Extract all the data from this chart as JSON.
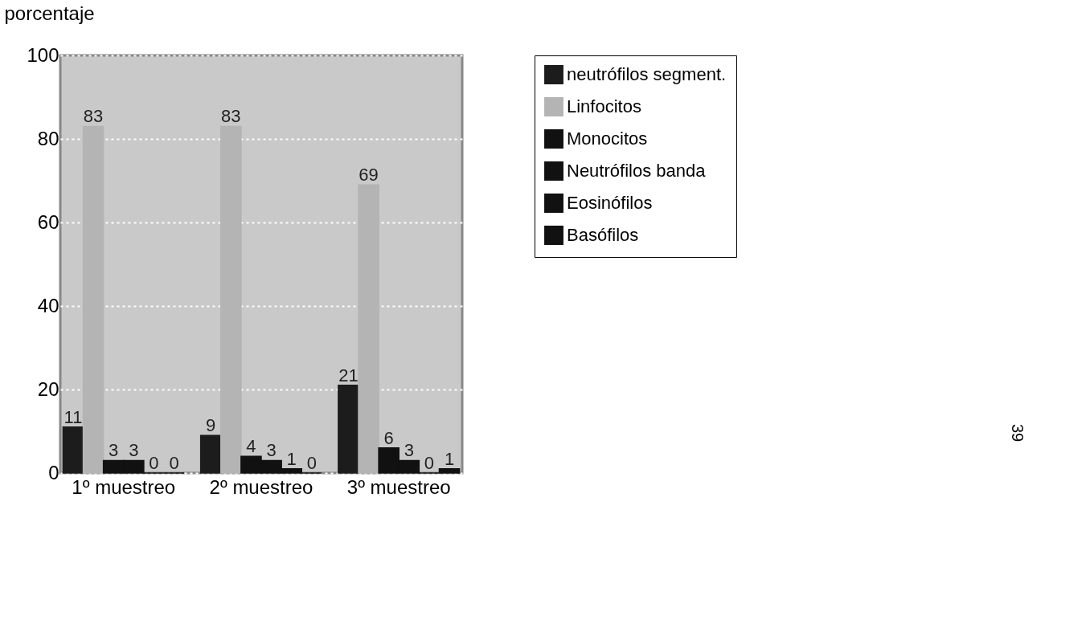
{
  "chart_data": {
    "type": "bar",
    "ylabel": "porcentaje",
    "categories": [
      "1º muestreo",
      "2º muestreo",
      "3º muestreo"
    ],
    "series": [
      {
        "name": "neutrófilos segment.",
        "color": "#1c1c1c",
        "values": [
          11,
          9,
          21
        ]
      },
      {
        "name": "Linfocitos",
        "color": "#b4b4b4",
        "values": [
          83,
          83,
          69
        ]
      },
      {
        "name": "Monocitos",
        "color": "#111111",
        "values": [
          3,
          4,
          6
        ]
      },
      {
        "name": "Neutrófilos banda",
        "color": "#111111",
        "values": [
          3,
          3,
          3
        ]
      },
      {
        "name": "Eosinófilos",
        "color": "#111111",
        "values": [
          0,
          1,
          0
        ]
      },
      {
        "name": "Basófilos",
        "color": "#111111",
        "values": [
          0,
          0,
          1
        ]
      }
    ],
    "ylim": [
      0,
      100
    ],
    "yticks": [
      0,
      20,
      40,
      60,
      80,
      100
    ],
    "grid": "y",
    "data_labels": true,
    "legend": "right",
    "annotations": [
      "39"
    ]
  }
}
